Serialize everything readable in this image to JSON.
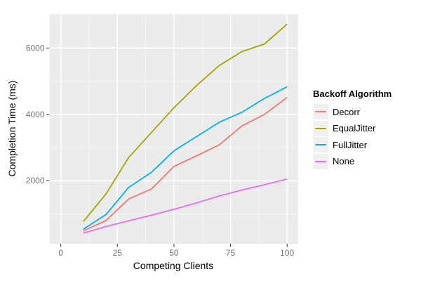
{
  "chart_data": {
    "type": "line",
    "title": "",
    "xlabel": "Competing Clients",
    "ylabel": "Completion Time (ms)",
    "x": [
      10,
      20,
      30,
      40,
      50,
      60,
      70,
      80,
      90,
      100
    ],
    "series": [
      {
        "name": "Decorr",
        "color": "#F8766D",
        "values": [
          490,
          800,
          1450,
          1750,
          2430,
          2750,
          3080,
          3650,
          4000,
          4510
        ]
      },
      {
        "name": "EqualJitter",
        "color": "#A3A500",
        "values": [
          770,
          1600,
          2700,
          3450,
          4200,
          4870,
          5470,
          5890,
          6120,
          6720
        ]
      },
      {
        "name": "FullJitter",
        "color": "#00B0F6",
        "values": [
          540,
          980,
          1800,
          2250,
          2900,
          3330,
          3760,
          4060,
          4480,
          4830
        ]
      },
      {
        "name": "None",
        "color": "#E76BF3",
        "values": [
          420,
          620,
          790,
          960,
          1140,
          1330,
          1540,
          1720,
          1880,
          2050
        ]
      }
    ],
    "x_ticks": [
      0,
      25,
      50,
      75,
      100
    ],
    "y_ticks": [
      2000,
      4000,
      6000
    ],
    "x_minor": [
      12.5,
      37.5,
      62.5,
      87.5
    ],
    "y_minor": [
      1000,
      3000,
      5000,
      7000
    ],
    "xlim": [
      -5.0,
      104.9
    ],
    "ylim": [
      100,
      7022
    ],
    "grid": "on",
    "panel_bg": "#EBEBEB",
    "grid_color": "#FFFFFF",
    "tick_color": "#333333",
    "tick_label_color": "#737373",
    "legend": {
      "title": "Backoff Algorithm",
      "position": "right",
      "key_bg": "#F0F0F0"
    }
  }
}
